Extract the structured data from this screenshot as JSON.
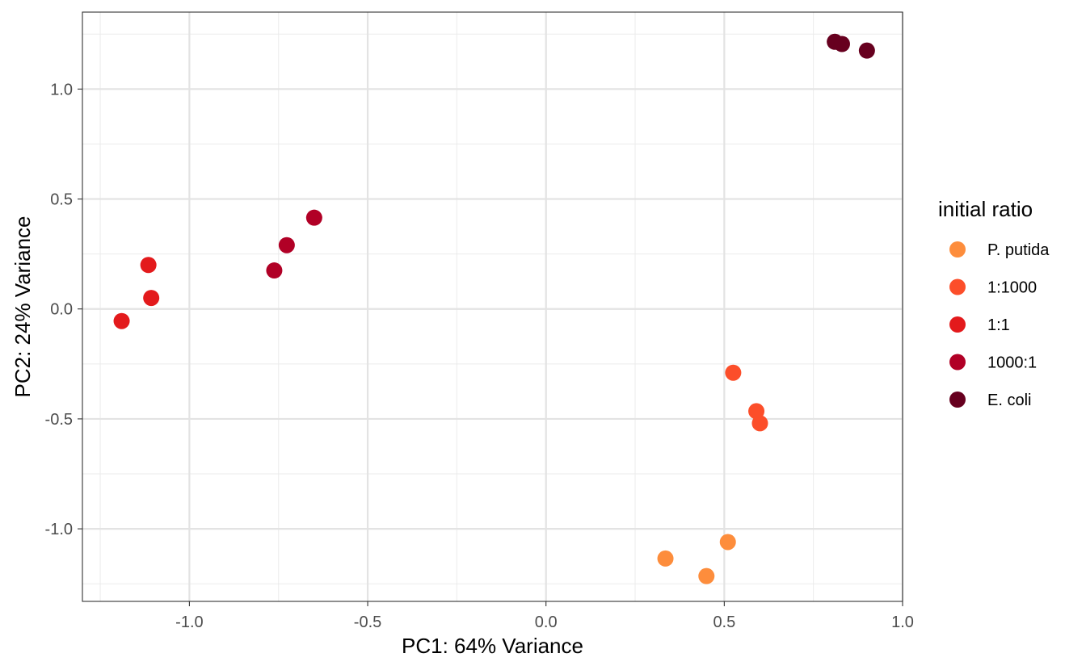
{
  "chart_data": {
    "type": "scatter",
    "title": "",
    "xlabel": "PC1: 64% Variance",
    "ylabel": "PC2: 24% Variance",
    "xlim": [
      -1.3,
      1.0
    ],
    "ylim": [
      -1.33,
      1.35
    ],
    "x_ticks": [
      -1.0,
      -0.5,
      0.0,
      0.5,
      1.0
    ],
    "x_tick_labels": [
      "-1.0",
      "-0.5",
      "0.0",
      "0.5",
      "1.0"
    ],
    "y_ticks": [
      -1.0,
      -0.5,
      0.0,
      0.5,
      1.0
    ],
    "y_tick_labels": [
      "-1.0",
      "-0.5",
      "0.0",
      "0.5",
      "1.0"
    ],
    "grid": true,
    "legend": {
      "title": "initial ratio",
      "position": "right"
    },
    "series": [
      {
        "name": "P. putida",
        "color": "#FD8D3C",
        "points": [
          [
            0.335,
            -1.135
          ],
          [
            0.45,
            -1.215
          ],
          [
            0.51,
            -1.06
          ]
        ]
      },
      {
        "name": "1:1000",
        "color": "#FC4E2A",
        "points": [
          [
            0.525,
            -0.29
          ],
          [
            0.59,
            -0.465
          ],
          [
            0.6,
            -0.52
          ]
        ]
      },
      {
        "name": "1:1",
        "color": "#E31A1C",
        "points": [
          [
            -1.115,
            0.2
          ],
          [
            -1.107,
            0.05
          ],
          [
            -1.19,
            -0.055
          ]
        ]
      },
      {
        "name": "1000:1",
        "color": "#B10026",
        "points": [
          [
            -0.65,
            0.415
          ],
          [
            -0.727,
            0.29
          ],
          [
            -0.762,
            0.175
          ]
        ]
      },
      {
        "name": "E. coli",
        "color": "#67001F",
        "points": [
          [
            0.81,
            1.215
          ],
          [
            0.83,
            1.205
          ],
          [
            0.9,
            1.175
          ]
        ]
      }
    ]
  }
}
